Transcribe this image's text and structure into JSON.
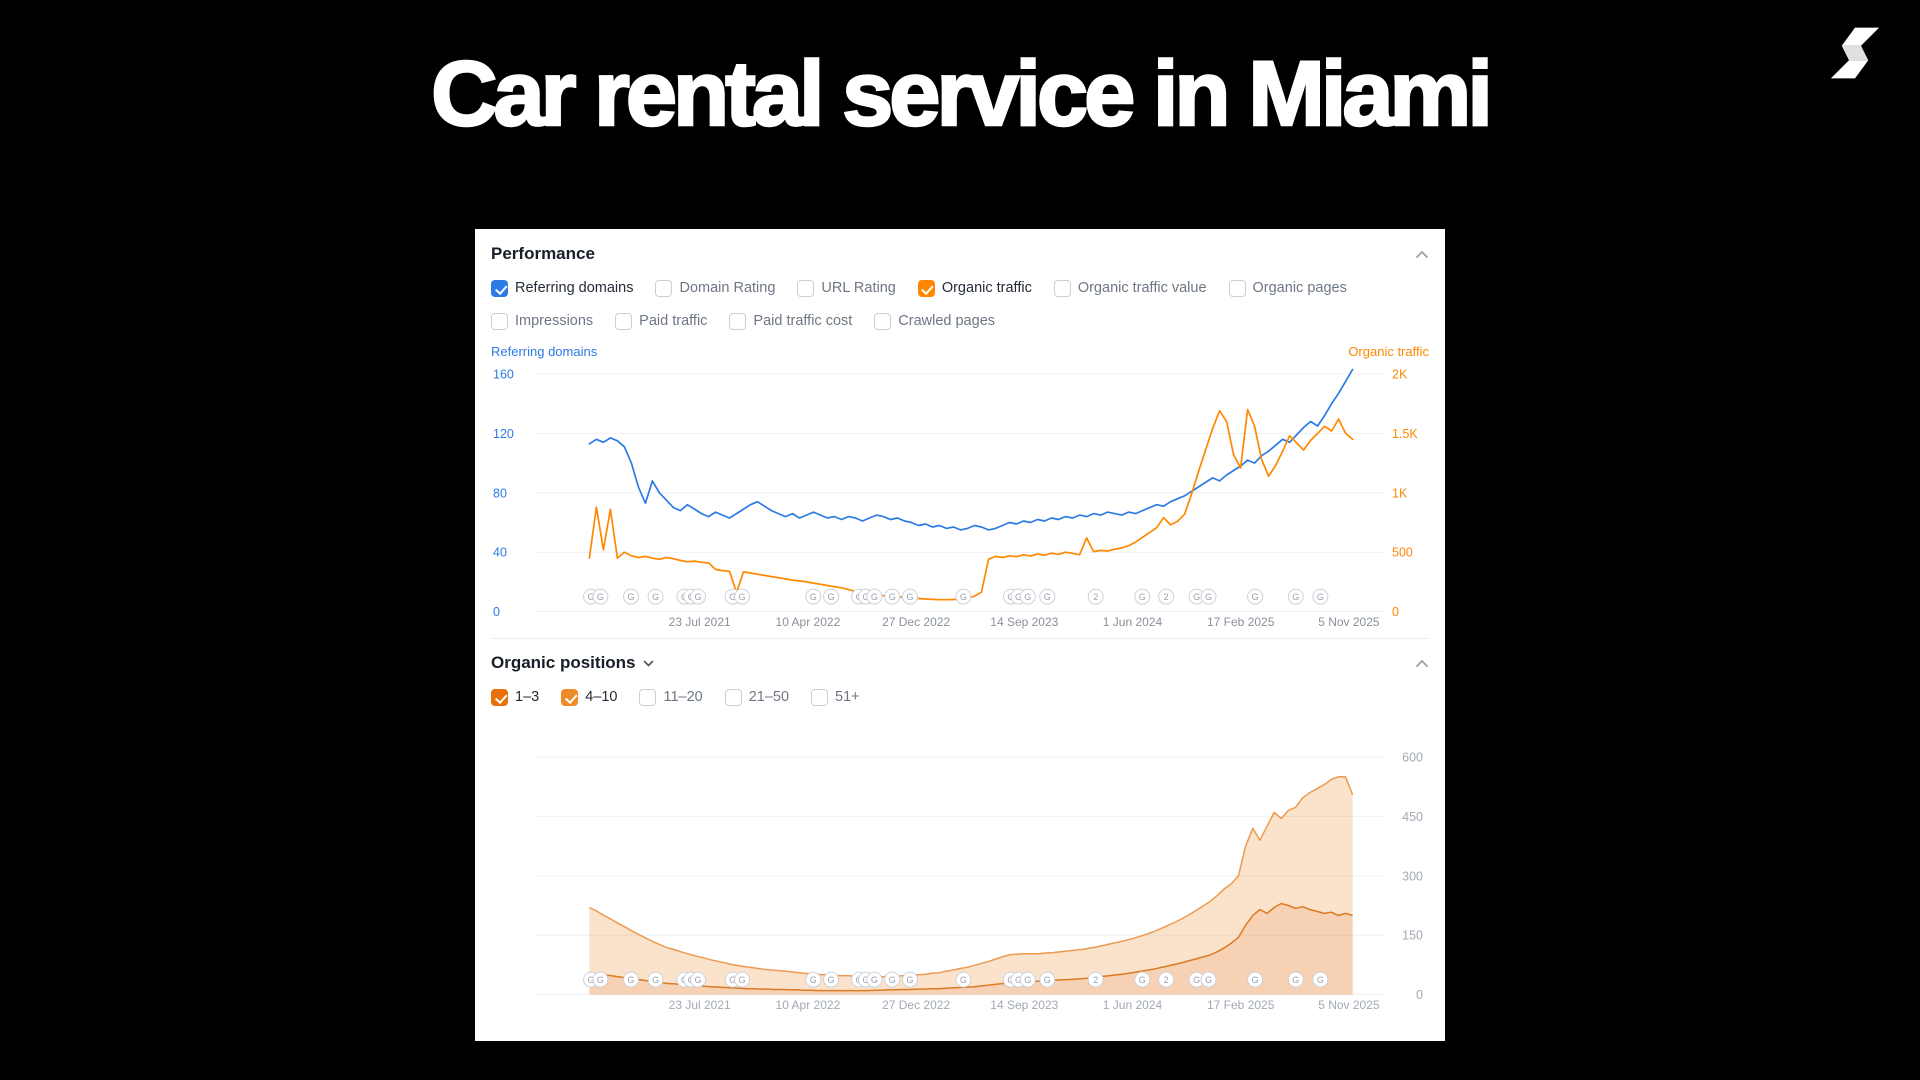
{
  "slide": {
    "title": "Car rental service in Miami",
    "background": "#000000",
    "logo": "brand-mark"
  },
  "panel": {
    "performance": {
      "title": "Performance",
      "metrics_row1": [
        {
          "label": "Referring domains",
          "checked": true,
          "color": "#2c7be5"
        },
        {
          "label": "Domain Rating",
          "checked": false
        },
        {
          "label": "URL Rating",
          "checked": false
        },
        {
          "label": "Organic traffic",
          "checked": true,
          "color": "#ff8800"
        },
        {
          "label": "Organic traffic value",
          "checked": false
        },
        {
          "label": "Organic pages",
          "checked": false
        }
      ],
      "metrics_row2": [
        {
          "label": "Impressions",
          "checked": false
        },
        {
          "label": "Paid traffic",
          "checked": false
        },
        {
          "label": "Paid traffic cost",
          "checked": false
        },
        {
          "label": "Crawled pages",
          "checked": false
        }
      ]
    },
    "organic_positions": {
      "title": "Organic positions",
      "filters": [
        {
          "label": "1–3",
          "checked": true,
          "color": "#e8710a"
        },
        {
          "label": "4–10",
          "checked": true,
          "color": "#f08c28"
        },
        {
          "label": "11–20",
          "checked": false
        },
        {
          "label": "21–50",
          "checked": false
        },
        {
          "label": "51+",
          "checked": false
        }
      ]
    }
  },
  "chart_data": [
    {
      "type": "line",
      "title": "Performance",
      "grid": true,
      "legend_position": "none",
      "x_tick_labels": [
        "23 Jul 2021",
        "10 Apr 2022",
        "27 Dec 2022",
        "14 Sep 2023",
        "1 Jun 2024",
        "17 Feb 2025",
        "5 Nov 2025"
      ],
      "x_label_start_frac": 0.193,
      "x_label_step_frac": 0.1276,
      "data_start_frac": 0.063,
      "data_end_frac": 0.963,
      "left_axis": {
        "label": "Referring domains",
        "color": "#2c7be5",
        "ticks": [
          0,
          40,
          80,
          120,
          160
        ],
        "range": [
          0,
          170
        ]
      },
      "right_axis": {
        "label": "Organic traffic",
        "color": "#ff8800",
        "ticks": [
          "0",
          "500",
          "1K",
          "1.5K",
          "2K"
        ],
        "tick_values": [
          0,
          500,
          1000,
          1500,
          2000
        ],
        "range": [
          0,
          2125
        ]
      },
      "series": [
        {
          "name": "Referring domains",
          "axis": "left",
          "color": "#2c7be5",
          "values": [
            113,
            116,
            114,
            117,
            115,
            111,
            100,
            84,
            73,
            88,
            80,
            75,
            70,
            68,
            72,
            69,
            66,
            64,
            67,
            65,
            63,
            66,
            69,
            72,
            74,
            71,
            68,
            66,
            64,
            66,
            63,
            65,
            67,
            65,
            63,
            64,
            62,
            64,
            63,
            61,
            63,
            65,
            64,
            62,
            63,
            61,
            60,
            58,
            59,
            57,
            58,
            56,
            57,
            55,
            56,
            58,
            57,
            55,
            56,
            58,
            60,
            59,
            61,
            60,
            62,
            61,
            63,
            62,
            64,
            63,
            65,
            64,
            66,
            65,
            67,
            66,
            65,
            67,
            66,
            68,
            70,
            72,
            71,
            74,
            76,
            78,
            81,
            84,
            87,
            90,
            88,
            92,
            95,
            98,
            102,
            100,
            105,
            108,
            112,
            116,
            114,
            119,
            124,
            128,
            125,
            132,
            140,
            147,
            155,
            163
          ]
        },
        {
          "name": "Organic traffic",
          "axis": "right",
          "color": "#ff8800",
          "values": [
            450,
            880,
            520,
            860,
            450,
            500,
            470,
            455,
            465,
            450,
            440,
            455,
            445,
            430,
            420,
            425,
            415,
            410,
            355,
            345,
            340,
            160,
            335,
            325,
            315,
            305,
            295,
            285,
            275,
            265,
            258,
            250,
            240,
            230,
            220,
            210,
            200,
            185,
            170,
            158,
            148,
            140,
            134,
            128,
            124,
            120,
            115,
            110,
            106,
            103,
            100,
            100,
            102,
            105,
            112,
            130,
            165,
            440,
            465,
            455,
            470,
            462,
            478,
            468,
            485,
            475,
            492,
            482,
            500,
            490,
            478,
            620,
            505,
            515,
            510,
            525,
            535,
            555,
            585,
            625,
            665,
            705,
            790,
            730,
            760,
            820,
            990,
            1180,
            1360,
            1540,
            1690,
            1600,
            1320,
            1210,
            1700,
            1560,
            1280,
            1140,
            1230,
            1350,
            1480,
            1420,
            1360,
            1440,
            1500,
            1560,
            1520,
            1620,
            1500,
            1450
          ]
        }
      ],
      "google_updates": [
        {
          "f": 0.065,
          "t": "G"
        },
        {
          "f": 0.076,
          "t": "G"
        },
        {
          "f": 0.112,
          "t": "G"
        },
        {
          "f": 0.141,
          "t": "G"
        },
        {
          "f": 0.175,
          "t": "G"
        },
        {
          "f": 0.183,
          "t": "G"
        },
        {
          "f": 0.191,
          "t": "G"
        },
        {
          "f": 0.232,
          "t": "G"
        },
        {
          "f": 0.243,
          "t": "G"
        },
        {
          "f": 0.327,
          "t": "G"
        },
        {
          "f": 0.348,
          "t": "G"
        },
        {
          "f": 0.381,
          "t": "G"
        },
        {
          "f": 0.389,
          "t": "G"
        },
        {
          "f": 0.399,
          "t": "G"
        },
        {
          "f": 0.42,
          "t": "G"
        },
        {
          "f": 0.441,
          "t": "G"
        },
        {
          "f": 0.504,
          "t": "G"
        },
        {
          "f": 0.56,
          "t": "G"
        },
        {
          "f": 0.569,
          "t": "G"
        },
        {
          "f": 0.58,
          "t": "G"
        },
        {
          "f": 0.603,
          "t": "G"
        },
        {
          "f": 0.66,
          "t": "2"
        },
        {
          "f": 0.715,
          "t": "G"
        },
        {
          "f": 0.743,
          "t": "2"
        },
        {
          "f": 0.779,
          "t": "G"
        },
        {
          "f": 0.793,
          "t": "G"
        },
        {
          "f": 0.848,
          "t": "G"
        },
        {
          "f": 0.896,
          "t": "G"
        },
        {
          "f": 0.925,
          "t": "G"
        }
      ]
    },
    {
      "type": "area",
      "title": "Organic positions",
      "stacked": true,
      "grid": true,
      "x_tick_labels": [
        "23 Jul 2021",
        "10 Apr 2022",
        "27 Dec 2022",
        "14 Sep 2023",
        "1 Jun 2024",
        "17 Feb 2025",
        "5 Nov 2025"
      ],
      "x_label_start_frac": 0.193,
      "x_label_step_frac": 0.1276,
      "data_start_frac": 0.063,
      "data_end_frac": 0.963,
      "right_axis": {
        "label": "",
        "color": "#a2a9b3",
        "ticks": [
          "0",
          "150",
          "300",
          "450",
          "600"
        ],
        "tick_values": [
          0,
          150,
          300,
          450,
          600
        ],
        "range": [
          0,
          660
        ]
      },
      "series": [
        {
          "name": "1–3",
          "color": "#db7b22",
          "fill": "rgba(232,122,38,0.35)",
          "values": [
            55,
            53,
            50,
            48,
            45,
            43,
            40,
            38,
            35,
            33,
            30,
            28,
            27,
            25,
            24,
            22,
            21,
            20,
            19,
            18,
            17,
            16,
            15,
            15,
            14,
            14,
            13,
            13,
            12,
            12,
            11,
            11,
            10,
            10,
            10,
            10,
            10,
            10,
            10,
            10,
            11,
            11,
            12,
            12,
            13,
            13,
            14,
            14,
            15,
            15,
            16,
            17,
            18,
            19,
            20,
            22,
            24,
            26,
            28,
            30,
            31,
            32,
            33,
            34,
            35,
            36,
            37,
            38,
            39,
            40,
            42,
            44,
            46,
            48,
            50,
            52,
            55,
            58,
            61,
            64,
            68,
            72,
            76,
            80,
            85,
            90,
            95,
            100,
            108,
            118,
            130,
            145,
            175,
            200,
            215,
            205,
            220,
            230,
            225,
            218,
            222,
            215,
            210,
            205,
            208,
            200,
            205,
            200
          ]
        },
        {
          "name": "4–10",
          "color": "#ec9a52",
          "fill": "rgba(243,158,84,0.30)",
          "values": [
            165,
            158,
            150,
            143,
            135,
            128,
            120,
            113,
            107,
            100,
            95,
            90,
            86,
            82,
            78,
            75,
            72,
            68,
            65,
            62,
            59,
            57,
            55,
            53,
            51,
            49,
            48,
            47,
            46,
            44,
            43,
            42,
            41,
            40,
            39,
            38,
            38,
            37,
            36,
            35,
            35,
            34,
            34,
            34,
            35,
            35,
            36,
            37,
            39,
            40,
            43,
            45,
            48,
            50,
            54,
            57,
            60,
            64,
            68,
            71,
            71,
            71,
            70,
            69,
            70,
            70,
            71,
            72,
            73,
            74,
            75,
            76,
            78,
            80,
            82,
            84,
            86,
            88,
            91,
            94,
            98,
            102,
            106,
            111,
            116,
            122,
            128,
            135,
            142,
            149,
            150,
            155,
            200,
            220,
            175,
            220,
            240,
            215,
            240,
            255,
            275,
            295,
            310,
            325,
            335,
            350,
            345,
            305
          ]
        }
      ],
      "google_updates": [
        {
          "f": 0.065,
          "t": "G"
        },
        {
          "f": 0.076,
          "t": "G"
        },
        {
          "f": 0.112,
          "t": "G"
        },
        {
          "f": 0.141,
          "t": "G"
        },
        {
          "f": 0.175,
          "t": "G"
        },
        {
          "f": 0.183,
          "t": "G"
        },
        {
          "f": 0.191,
          "t": "G"
        },
        {
          "f": 0.232,
          "t": "G"
        },
        {
          "f": 0.243,
          "t": "G"
        },
        {
          "f": 0.327,
          "t": "G"
        },
        {
          "f": 0.348,
          "t": "G"
        },
        {
          "f": 0.381,
          "t": "G"
        },
        {
          "f": 0.389,
          "t": "G"
        },
        {
          "f": 0.399,
          "t": "G"
        },
        {
          "f": 0.42,
          "t": "G"
        },
        {
          "f": 0.441,
          "t": "G"
        },
        {
          "f": 0.504,
          "t": "G"
        },
        {
          "f": 0.56,
          "t": "G"
        },
        {
          "f": 0.569,
          "t": "G"
        },
        {
          "f": 0.58,
          "t": "G"
        },
        {
          "f": 0.603,
          "t": "G"
        },
        {
          "f": 0.66,
          "t": "2"
        },
        {
          "f": 0.715,
          "t": "G"
        },
        {
          "f": 0.743,
          "t": "2"
        },
        {
          "f": 0.779,
          "t": "G"
        },
        {
          "f": 0.793,
          "t": "G"
        },
        {
          "f": 0.848,
          "t": "G"
        },
        {
          "f": 0.896,
          "t": "G"
        },
        {
          "f": 0.925,
          "t": "G"
        }
      ]
    }
  ]
}
